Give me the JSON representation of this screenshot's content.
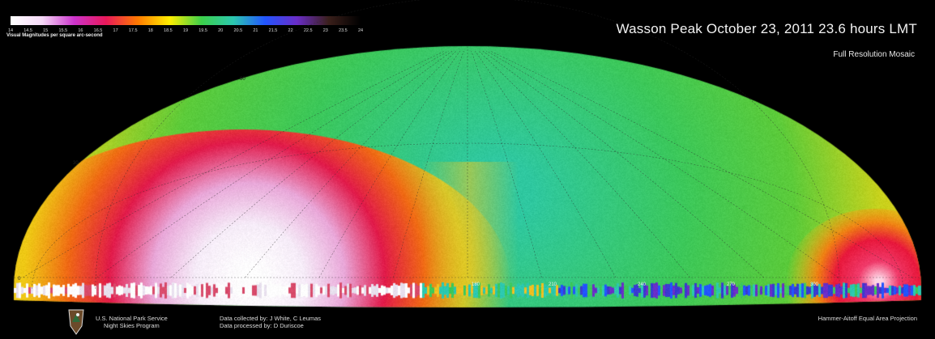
{
  "header": {
    "title": "Wasson Peak   October 23, 2011   23.6 hours LMT",
    "subtitle": "Full Resolution Mosaic"
  },
  "legend": {
    "title": "Visual Magnitudes per square arc-second",
    "ticks": [
      "14",
      "14.5",
      "15",
      "15.5",
      "16",
      "16.5",
      "17",
      "17.5",
      "18",
      "18.5",
      "19",
      "19.5",
      "20",
      "20.5",
      "21",
      "21.5",
      "22",
      "22.5",
      "23",
      "23.5",
      "24"
    ],
    "colors": [
      "#ffffff",
      "#f4d8f6",
      "#cc33cc",
      "#e8185a",
      "#ff7a00",
      "#ffee00",
      "#3cd04a",
      "#2cc8b0",
      "#2255ff",
      "#6a2dc8",
      "#3a1f1a",
      "#000000"
    ]
  },
  "map": {
    "altitude_labels": [
      "60",
      "30",
      "0"
    ],
    "azimuth_labels": [
      "180",
      "210",
      "240",
      "270",
      "300"
    ]
  },
  "footer": {
    "org_line1": "U.S. National Park Service",
    "org_line2": "Night Skies Program",
    "collected": "Data collected by:  J White, C Leumas",
    "processed": "Data processed by:  D Duriscoe",
    "projection": "Hammer-Aitoff Equal Area Projection"
  },
  "icons": {
    "logo": "nps-arrowhead-icon"
  }
}
